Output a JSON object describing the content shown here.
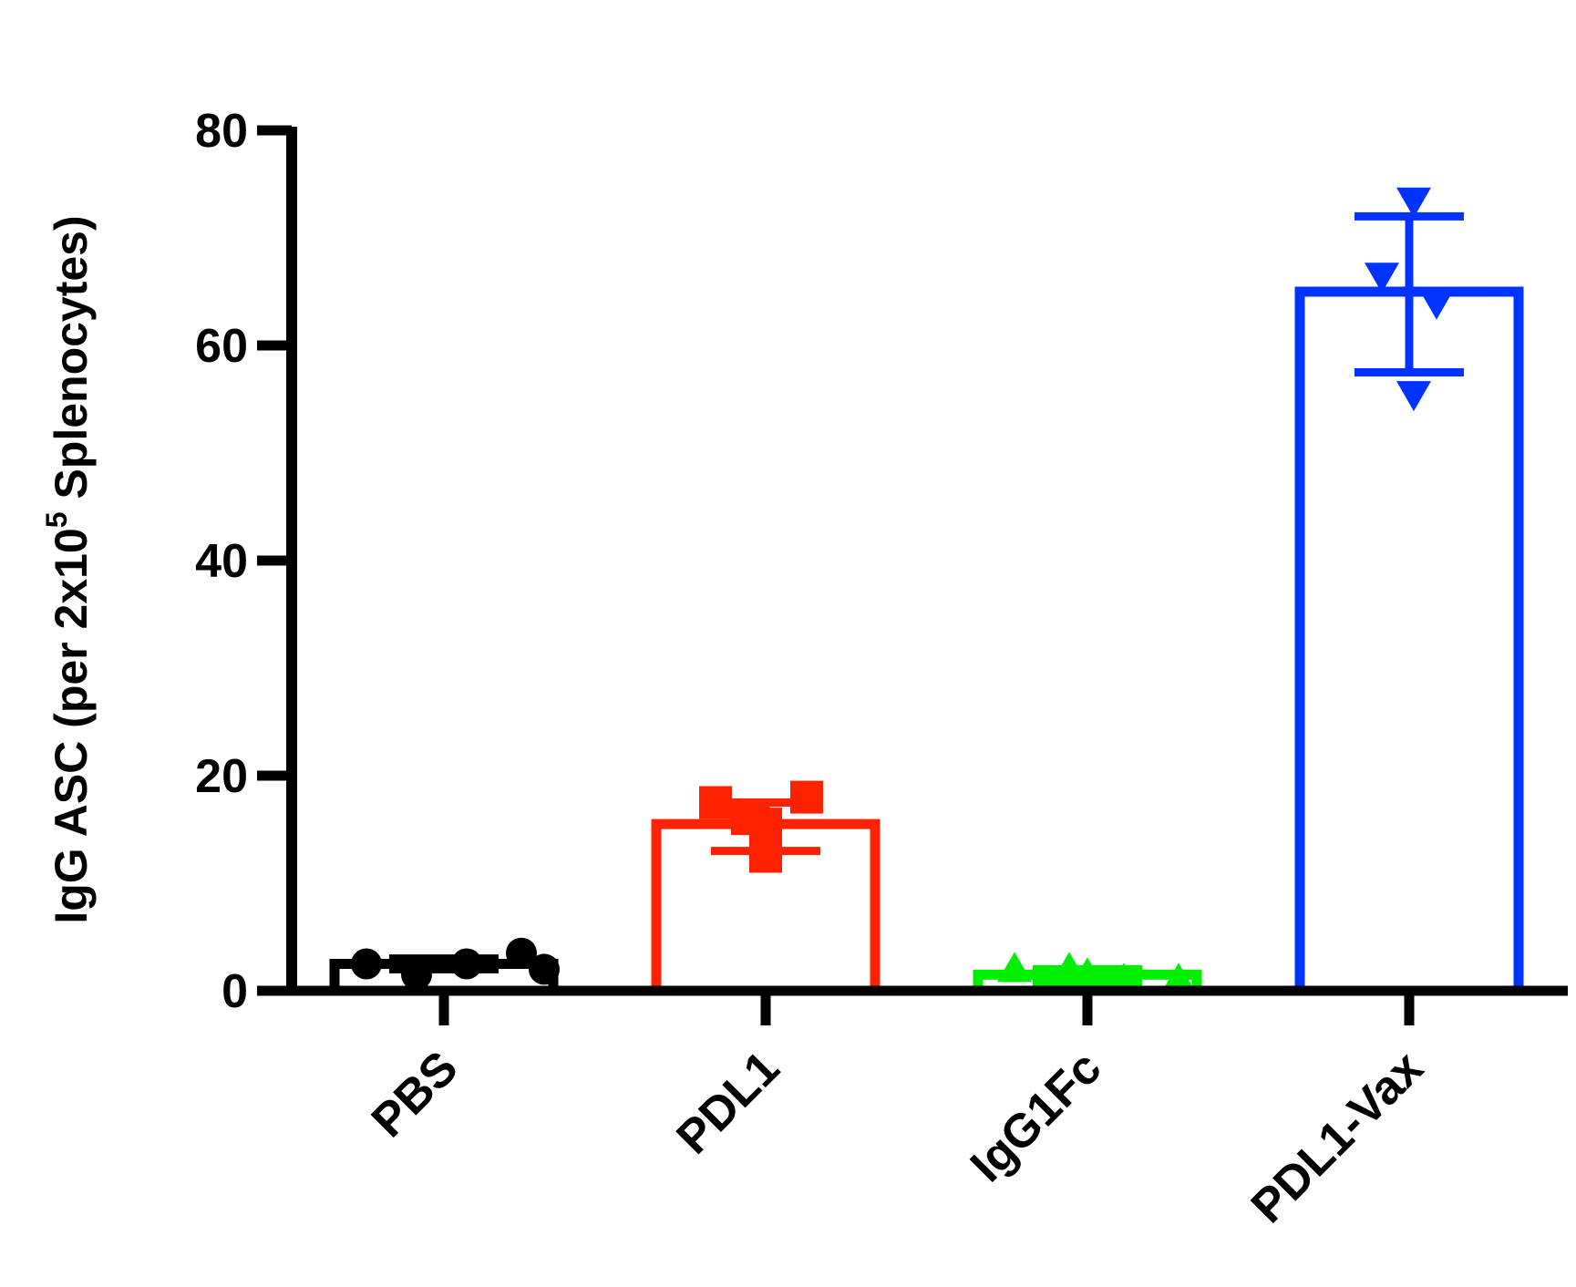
{
  "chart_data": {
    "type": "bar",
    "title": "",
    "xlabel": "",
    "ylabel_main": "IgG ASC (per 2x10",
    "ylabel_sup": "5",
    "ylabel_tail": " Splenocytes)",
    "categories": [
      "PBS",
      "PDL1",
      "IgG1Fc",
      "PDL1-Vax"
    ],
    "ylim": [
      0,
      80
    ],
    "yticks": [
      "0",
      "20",
      "40",
      "60",
      "80"
    ],
    "grid": false,
    "legend": "none",
    "bars": [
      {
        "category": "PBS",
        "mean": 2.5,
        "error_low": 2.0,
        "error_high": 3.0,
        "color": "#000000",
        "marker": "circle",
        "points": [
          2.5,
          1.5,
          2.5,
          3.5,
          2.0
        ]
      },
      {
        "category": "PDL1",
        "mean": 15.5,
        "error_low": 13.0,
        "error_high": 17.5,
        "color": "#ff2200",
        "marker": "square",
        "points": [
          17.5,
          16.0,
          15.5,
          12.5,
          18.0
        ]
      },
      {
        "category": "IgG1Fc",
        "mean": 1.5,
        "error_low": 0.8,
        "error_high": 2.0,
        "color": "#00ee00",
        "marker": "triangle-up",
        "points": [
          2.0,
          1.5,
          1.0,
          1.0,
          2.0
        ]
      },
      {
        "category": "PDL1-Vax",
        "mean": 65,
        "error_low": 57.5,
        "error_high": 72,
        "color": "#0033ff",
        "marker": "triangle-down",
        "points": [
          73.5,
          66.5,
          64.0,
          55.5
        ]
      }
    ]
  }
}
